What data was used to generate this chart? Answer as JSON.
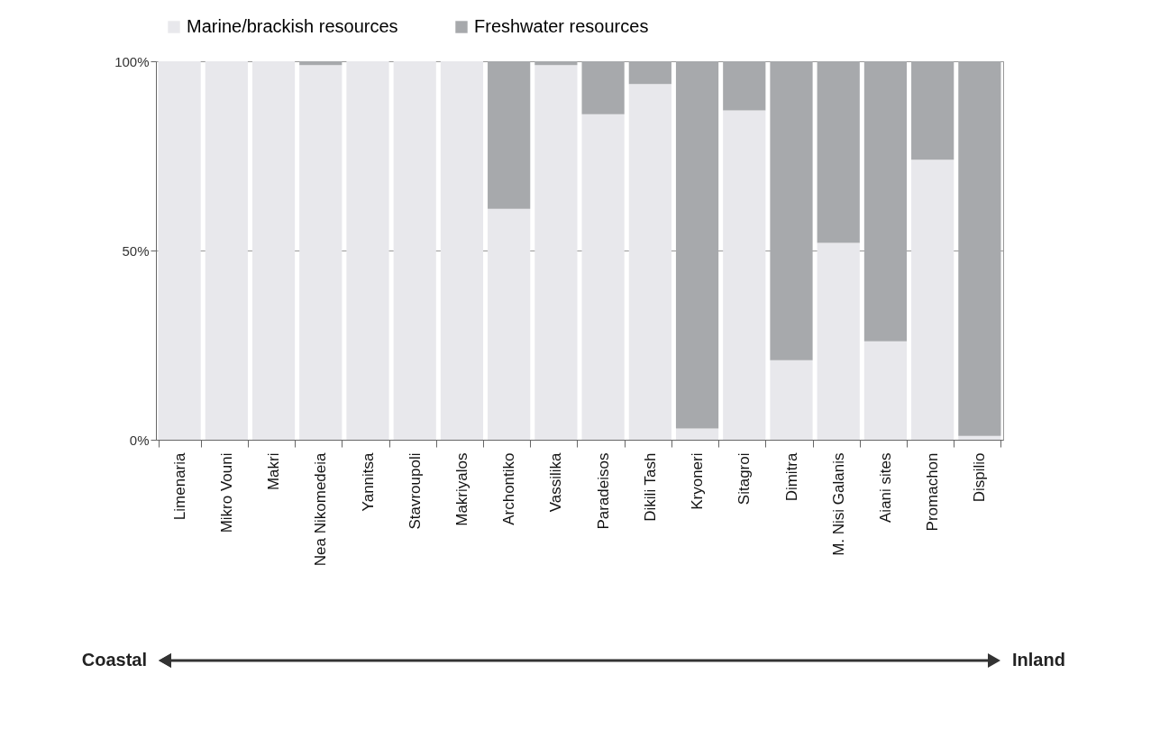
{
  "chart_data": {
    "type": "bar",
    "stacked": true,
    "categories": [
      "Limenaria",
      "Mikro Vouni",
      "Makri",
      "Nea Nikomedeia",
      "Yannitsa",
      "Stavroupoli",
      "Makriyalos",
      "Archontiko",
      "Vassilika",
      "Paradeisos",
      "Dikili Tash",
      "Kryoneri",
      "Sitagroi",
      "Dimitra",
      "M. Nisi Galanis",
      "Aiani sites",
      "Promachon",
      "Dispilio"
    ],
    "series": [
      {
        "name": "Marine/brackish resources",
        "color": "#e8e8ec",
        "values": [
          100,
          100,
          100,
          99,
          100,
          100,
          100,
          61,
          99,
          86,
          94,
          3,
          87,
          21,
          52,
          26,
          74,
          1
        ]
      },
      {
        "name": "Freshwater resources",
        "color": "#a7a9ac",
        "values": [
          0,
          0,
          0,
          1,
          0,
          0,
          0,
          39,
          1,
          14,
          6,
          97,
          13,
          79,
          48,
          74,
          26,
          99
        ]
      }
    ],
    "ylim": [
      0,
      100
    ],
    "yticks": [
      {
        "value": 0,
        "label": "0%"
      },
      {
        "value": 50,
        "label": "50%"
      },
      {
        "value": 100,
        "label": "100%"
      }
    ],
    "grid": "y",
    "legend": "top",
    "annotations": [
      "Coastal",
      "Inland"
    ]
  }
}
